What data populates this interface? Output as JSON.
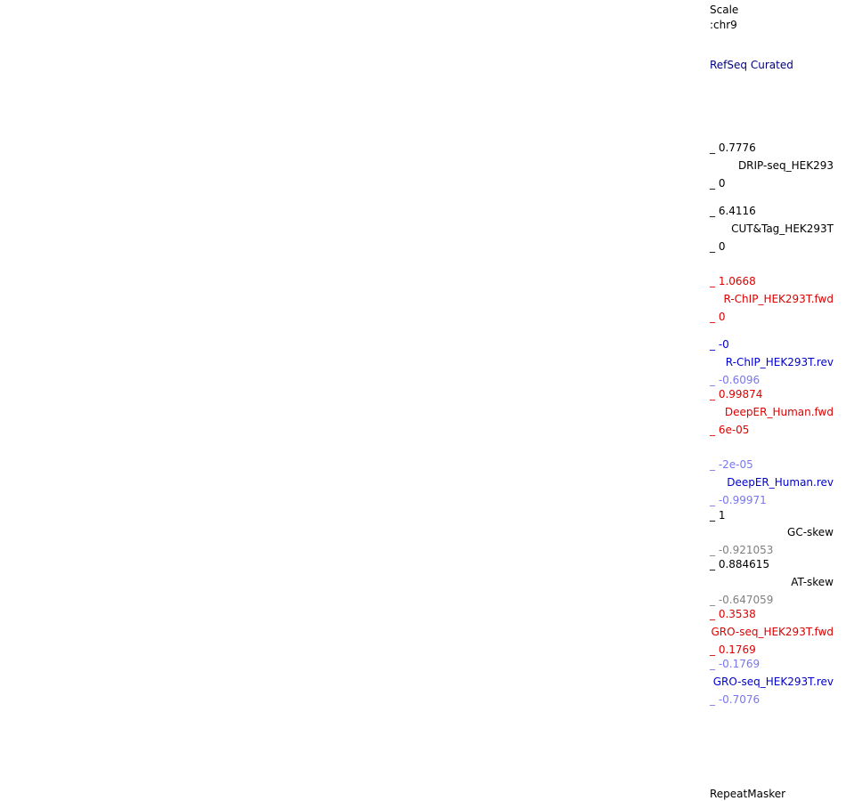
{
  "colors": {
    "black": "#000000",
    "red": "#dd0000",
    "blue": "#0000cc",
    "light_blue": "#7777ee",
    "gray": "#808080",
    "navy": "#000080"
  },
  "header": {
    "scale_label": "Scale",
    "chrom_label": ":chr9"
  },
  "refseq": {
    "label": "RefSeq Curated"
  },
  "tracks": {
    "drip_seq": {
      "max": "_ 0.7776",
      "name": "DRIP-seq_HEK293",
      "min": "_ 0"
    },
    "cut_tag": {
      "max": "_ 6.4116",
      "name": "CUT&Tag_HEK293T",
      "min": "_ 0"
    },
    "rchip_fwd": {
      "max": "_ 1.0668",
      "name": "R-ChIP_HEK293T.fwd",
      "min": "_ 0"
    },
    "rchip_rev": {
      "max": "_ -0",
      "name": "R-ChIP_HEK293T.rev",
      "min": "_ -0.6096"
    },
    "deeper_fwd": {
      "max": "_ 0.99874",
      "name": "DeepER_Human.fwd",
      "min": "_ 6e-05"
    },
    "deeper_rev": {
      "max": "_ -2e-05",
      "name": "DeepER_Human.rev",
      "min": "_ -0.99971"
    },
    "gc_skew": {
      "max": "_ 1",
      "name": "GC-skew",
      "min": "_ -0.921053"
    },
    "at_skew": {
      "max": "_ 0.884615",
      "name": "AT-skew",
      "min": "_ -0.647059"
    },
    "gro_fwd": {
      "max": "_ 0.3538",
      "name": "GRO-seq_HEK293T.fwd",
      "min": "_ 0.1769"
    },
    "gro_rev": {
      "max": "_ -0.1769",
      "name": "GRO-seq_HEK293T.rev",
      "min": "_ -0.7076"
    }
  },
  "repeatmasker": {
    "label": "RepeatMasker"
  }
}
